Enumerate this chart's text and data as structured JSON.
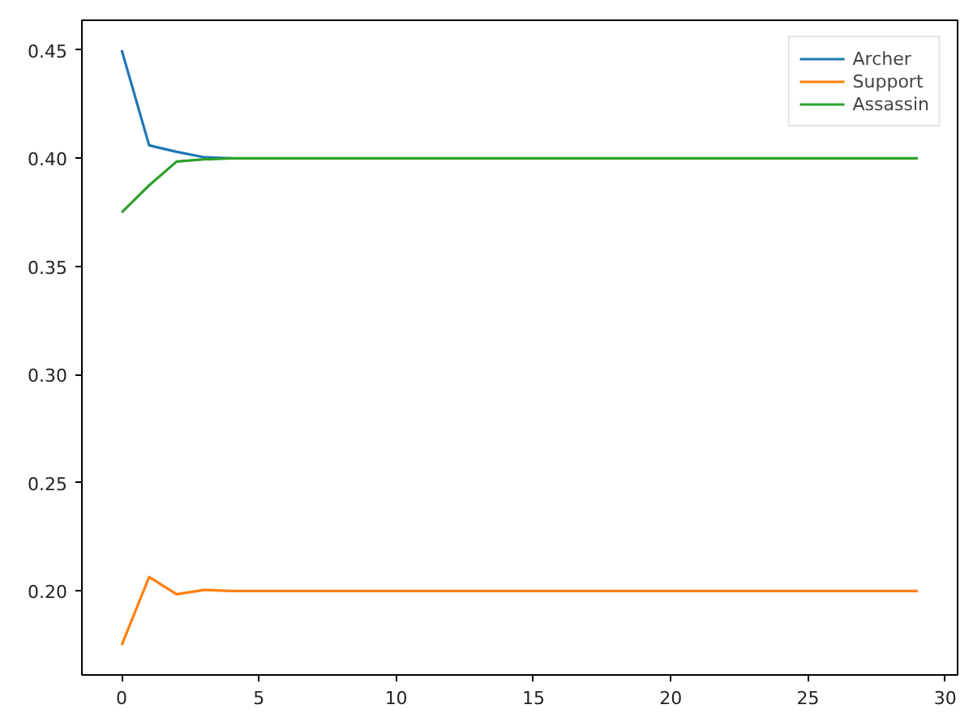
{
  "chart_data": {
    "type": "line",
    "x": [
      0,
      1,
      2,
      3,
      4,
      5,
      6,
      7,
      8,
      9,
      10,
      11,
      12,
      13,
      14,
      15,
      16,
      17,
      18,
      19,
      20,
      21,
      22,
      23,
      24,
      25,
      26,
      27,
      28,
      29
    ],
    "series": [
      {
        "name": "Archer",
        "color": "#1f77b4",
        "values": [
          0.45,
          0.406,
          0.403,
          0.4005,
          0.4,
          null,
          null,
          null,
          null,
          null,
          null,
          null,
          null,
          null,
          null,
          null,
          null,
          null,
          null,
          null,
          null,
          null,
          null,
          null,
          null,
          null,
          null,
          null,
          null,
          null
        ]
      },
      {
        "name": "Support",
        "color": "#ff7f0e",
        "values": [
          0.175,
          0.2065,
          0.1985,
          0.2005,
          0.2,
          0.2,
          0.2,
          0.2,
          0.2,
          0.2,
          0.2,
          0.2,
          0.2,
          0.2,
          0.2,
          0.2,
          0.2,
          0.2,
          0.2,
          0.2,
          0.2,
          0.2,
          0.2,
          0.2,
          0.2,
          0.2,
          0.2,
          0.2,
          0.2,
          0.2
        ]
      },
      {
        "name": "Assassin",
        "color": "#2ca02c",
        "values": [
          0.375,
          0.3875,
          0.3985,
          0.3995,
          0.4,
          0.4,
          0.4,
          0.4,
          0.4,
          0.4,
          0.4,
          0.4,
          0.4,
          0.4,
          0.4,
          0.4,
          0.4,
          0.4,
          0.4,
          0.4,
          0.4,
          0.4,
          0.4,
          0.4,
          0.4,
          0.4,
          0.4,
          0.4,
          0.4,
          0.4
        ]
      }
    ],
    "xlim": [
      -1.45,
      30.45
    ],
    "ylim": [
      0.1612,
      0.4638
    ],
    "xticks": [
      0,
      5,
      10,
      15,
      20,
      25,
      30
    ],
    "yticks": [
      {
        "value": 0.2,
        "label": "0.20"
      },
      {
        "value": 0.25,
        "label": "0.25"
      },
      {
        "value": 0.3,
        "label": "0.30"
      },
      {
        "value": 0.35,
        "label": "0.35"
      },
      {
        "value": 0.4,
        "label": "0.40"
      },
      {
        "value": 0.45,
        "label": "0.45"
      }
    ],
    "grid": false,
    "legend": "top right",
    "marker": "none",
    "line_style": "solid"
  }
}
